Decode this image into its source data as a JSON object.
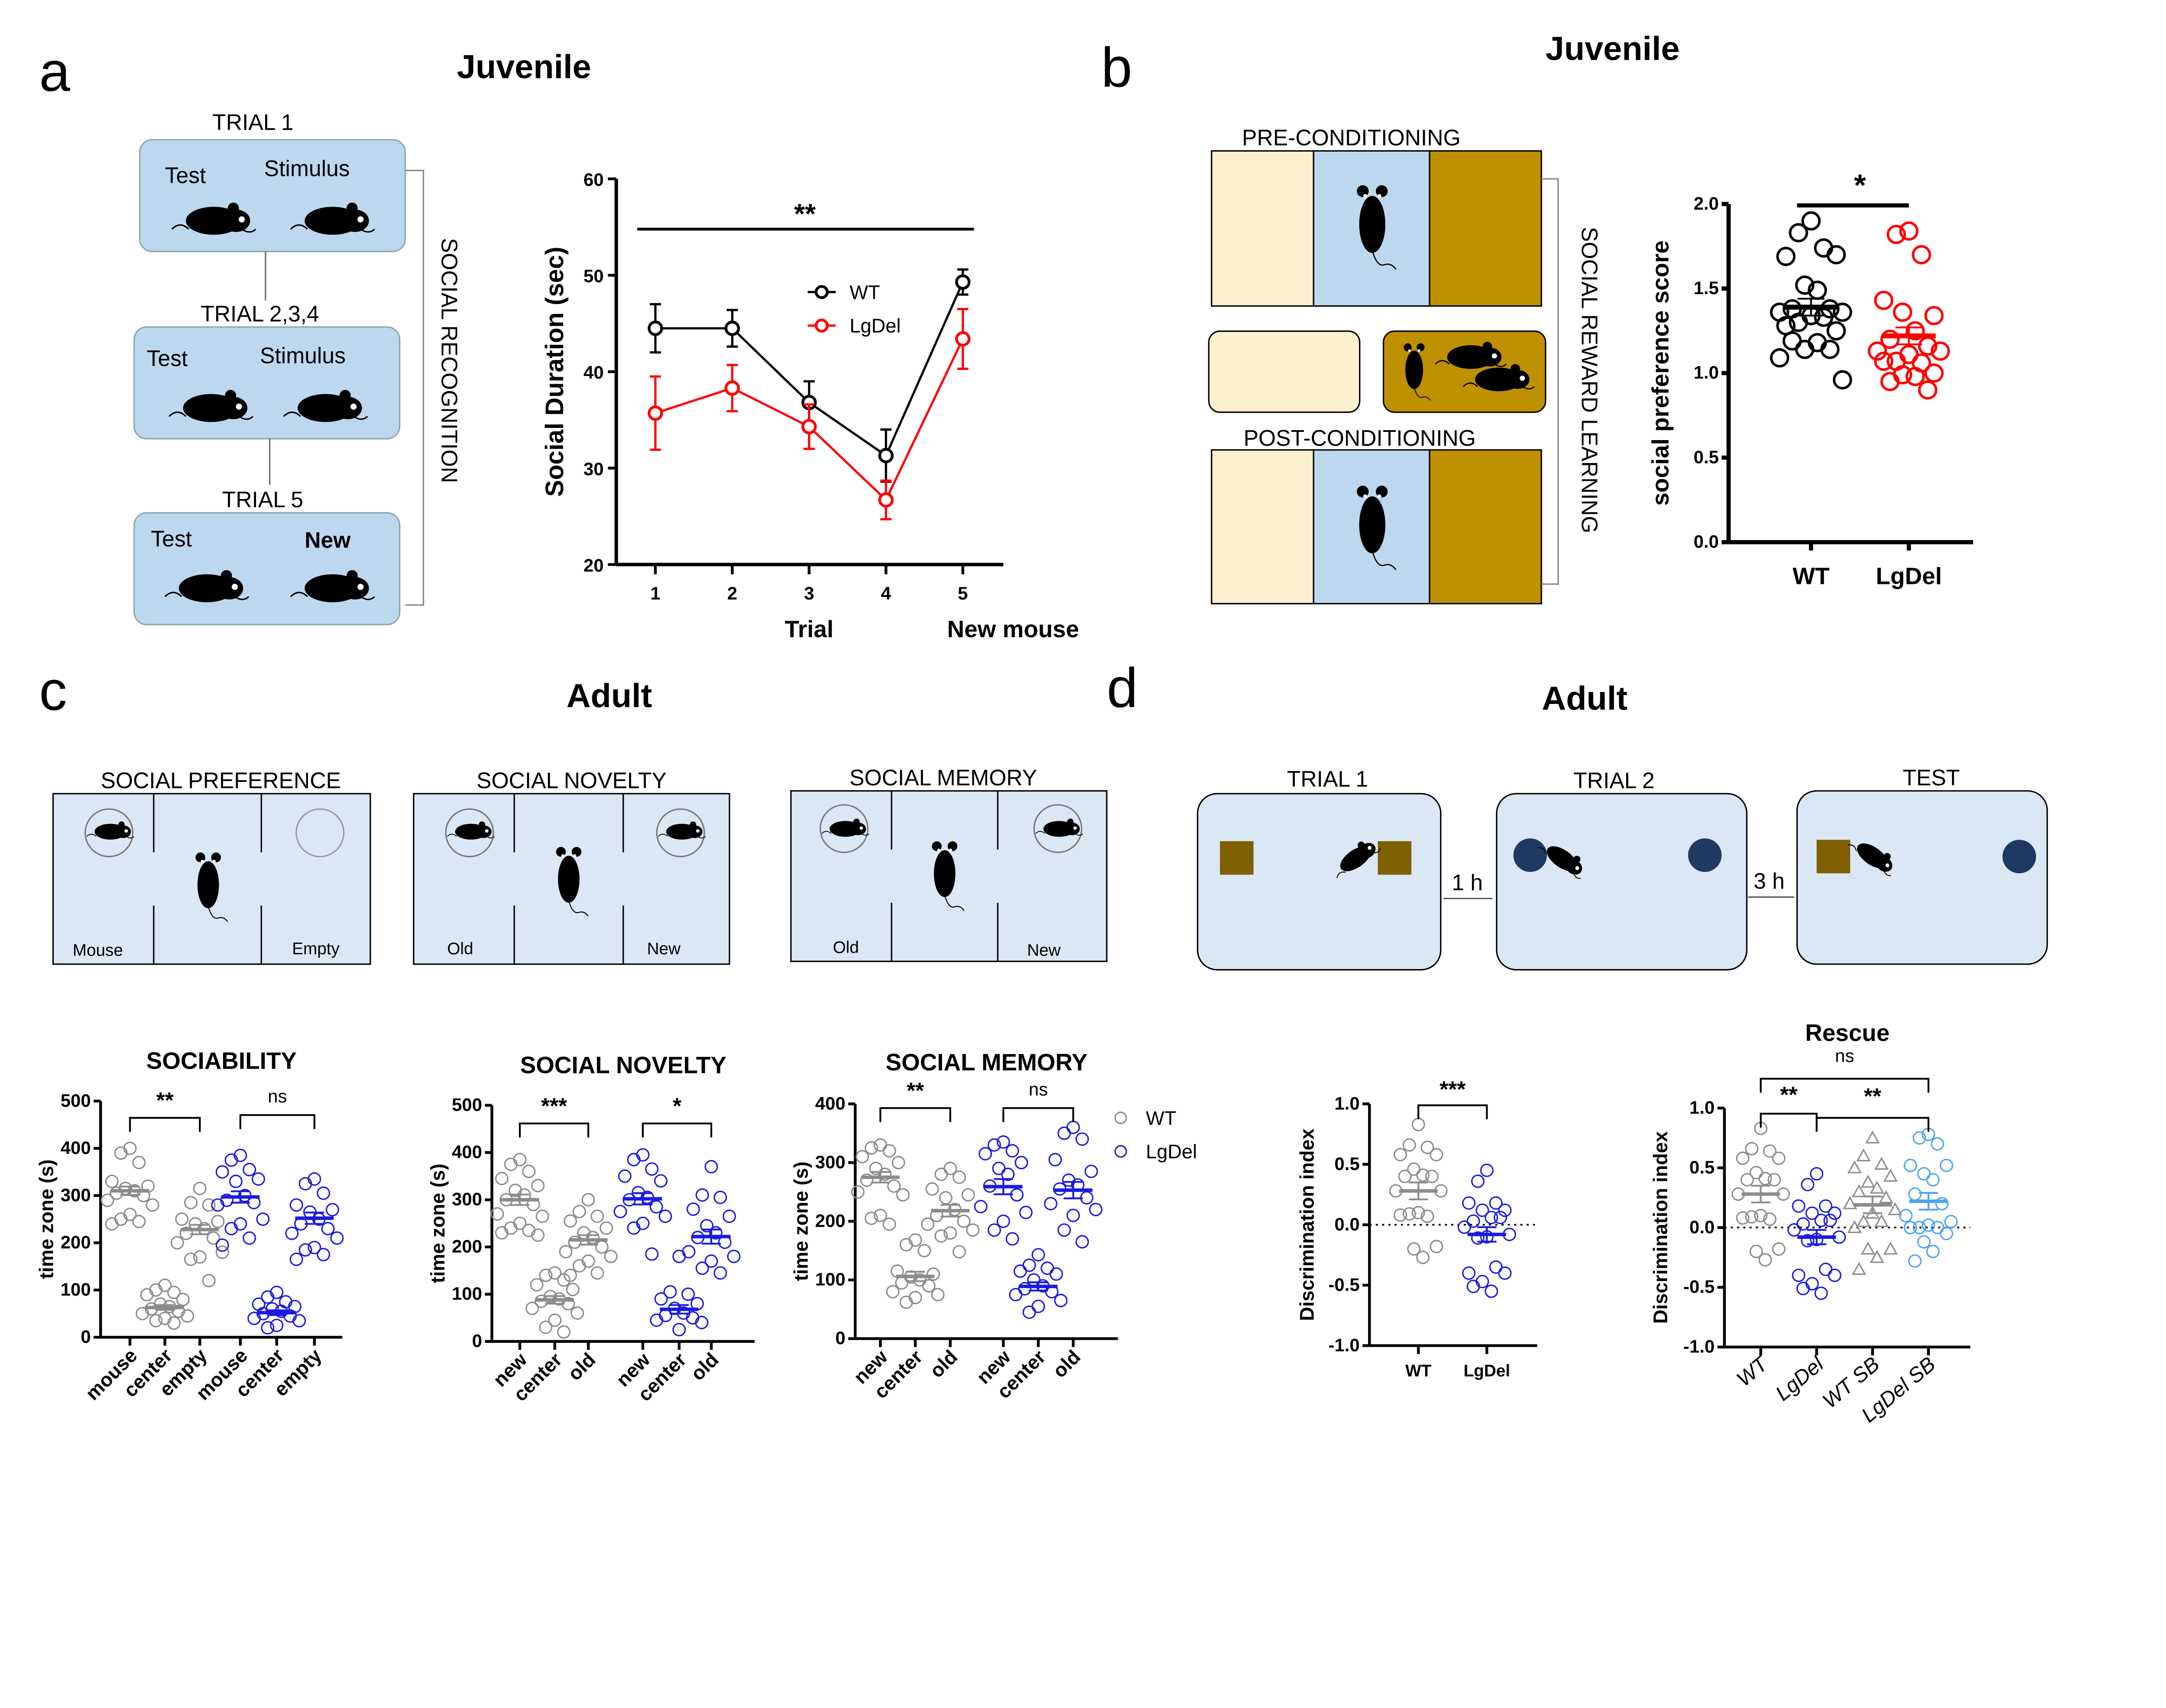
{
  "panels": {
    "a": {
      "letter": "a",
      "title": "Juvenile",
      "diagram": {
        "trial1": "TRIAL 1",
        "trial234": "TRIAL 2,3,4",
        "trial5": "TRIAL 5",
        "test": "Test",
        "stimulus": "Stimulus",
        "new": "New",
        "side_label": "SOCIAL RECOGNITION"
      }
    },
    "b": {
      "letter": "b",
      "title": "Juvenile",
      "diagram": {
        "pre": "PRE-CONDITIONING",
        "post": "POST-CONDITIONING",
        "side_label": "SOCIAL REWARD LEARNING",
        "colors": {
          "bedding_plain": "#fdf0cc",
          "center": "#bdd7ee",
          "bedding_social": "#bf9000"
        }
      }
    },
    "c": {
      "letter": "c",
      "title": "Adult",
      "diagram": {
        "pref": {
          "title": "SOCIAL PREFERENCE",
          "left": "Mouse",
          "right": "Empty"
        },
        "novelty": {
          "title": "SOCIAL NOVELTY",
          "left": "Old",
          "right": "New"
        },
        "memory": {
          "title": "SOCIAL MEMORY",
          "left": "Old",
          "right": "New"
        }
      }
    },
    "d": {
      "letter": "d",
      "title": "Adult",
      "diagram": {
        "trial1": "TRIAL 1",
        "trial2": "TRIAL 2",
        "test": "TEST",
        "gap1": "1 h",
        "gap2": "3 h",
        "colors": {
          "cube": "#7f6000",
          "ball": "#1f3864"
        }
      }
    }
  },
  "chart_data": [
    {
      "id": "a-line",
      "type": "line",
      "title": "",
      "xlabel": "Trial",
      "xlabel2": "New mouse",
      "ylabel": "Social Duration (sec)",
      "ylim": [
        20,
        60
      ],
      "yticks": [
        20,
        30,
        40,
        50,
        60
      ],
      "categories": [
        "1",
        "2",
        "3",
        "4",
        "5"
      ],
      "significance": "**",
      "legend": "top-right",
      "series": [
        {
          "name": "WT",
          "color": "#000000",
          "values": [
            44.5,
            44.5,
            36.8,
            31.3,
            49.3
          ],
          "sem": [
            2.5,
            1.9,
            2.2,
            2.7,
            1.3
          ]
        },
        {
          "name": "LgDel",
          "color": "#ff0000",
          "values": [
            35.7,
            38.3,
            34.3,
            26.7,
            43.4
          ],
          "sem": [
            3.8,
            2.4,
            2.3,
            2.0,
            3.1
          ]
        }
      ]
    },
    {
      "id": "b-scatter",
      "type": "scatter",
      "title": "",
      "ylabel": "social preference score",
      "ylim": [
        0,
        2
      ],
      "yticks": [
        0,
        0.5,
        1,
        1.5,
        2
      ],
      "ytick_labels": [
        "0.0",
        "0.5",
        "1.0",
        "1.5",
        "2.0"
      ],
      "comparisons": [
        {
          "a": 0,
          "b": 1,
          "label": "*"
        }
      ],
      "groups": [
        {
          "label": "WT",
          "color": "#000000",
          "marker": "circle",
          "mean": 1.39,
          "sem": 0.05,
          "points": [
            1.9,
            1.83,
            1.74,
            1.69,
            1.7,
            1.52,
            1.49,
            1.38,
            1.38,
            1.36,
            1.36,
            1.34,
            1.3,
            1.33,
            1.28,
            1.25,
            1.14,
            1.18,
            1.19,
            1.14,
            1.09,
            0.96
          ]
        },
        {
          "label": "LgDel",
          "color": "#ff0000",
          "marker": "circle",
          "mean": 1.22,
          "sem": 0.05,
          "points": [
            1.84,
            1.82,
            1.7,
            1.43,
            1.34,
            1.36,
            1.25,
            1.2,
            1.16,
            1.13,
            1.13,
            1.11,
            1.07,
            1.06,
            1.07,
            1.0,
            0.99,
            0.98,
            0.95,
            0.9
          ]
        }
      ]
    },
    {
      "id": "c-sociability",
      "type": "scatter",
      "title": "SOCIABILITY",
      "ylabel": "time zone (s)",
      "ylim": [
        0,
        500
      ],
      "yticks": [
        0,
        100,
        200,
        300,
        400,
        500
      ],
      "comparisons": [
        {
          "a": 0,
          "b": 2,
          "label": "**"
        },
        {
          "a": 3,
          "b": 5,
          "label": "ns"
        }
      ],
      "groups": [
        {
          "label": "mouse",
          "series": "WT",
          "color": "#8c8c8c",
          "marker": "circle",
          "mean": 310,
          "sem": 9,
          "points": [
            400,
            390,
            370,
            330,
            320,
            315,
            310,
            305,
            300,
            290,
            280,
            260,
            250,
            245,
            240
          ]
        },
        {
          "label": "center",
          "series": "WT",
          "color": "#8c8c8c",
          "marker": "circle",
          "mean": 63,
          "sem": 5,
          "points": [
            110,
            100,
            95,
            90,
            80,
            70,
            65,
            60,
            55,
            50,
            45,
            40,
            35,
            30
          ]
        },
        {
          "label": "empty",
          "series": "WT",
          "color": "#8c8c8c",
          "marker": "circle",
          "mean": 228,
          "sem": 10,
          "points": [
            315,
            285,
            280,
            250,
            245,
            240,
            230,
            220,
            210,
            200,
            180,
            170,
            165,
            120
          ]
        },
        {
          "label": "mouse",
          "series": "LgDel",
          "color": "#1a1ae0",
          "marker": "circle",
          "mean": 297,
          "sem": 12,
          "points": [
            385,
            375,
            355,
            350,
            335,
            330,
            300,
            290,
            285,
            280,
            250,
            240,
            230,
            210,
            195
          ]
        },
        {
          "label": "center",
          "series": "LgDel",
          "color": "#1a1ae0",
          "marker": "circle",
          "mean": 52,
          "sem": 5,
          "points": [
            95,
            85,
            75,
            70,
            65,
            60,
            55,
            50,
            45,
            40,
            35,
            25,
            20
          ]
        },
        {
          "label": "empty",
          "series": "LgDel",
          "color": "#1a1ae0",
          "marker": "circle",
          "mean": 252,
          "sem": 12,
          "points": [
            335,
            325,
            305,
            280,
            270,
            265,
            250,
            240,
            230,
            220,
            210,
            190,
            185,
            175,
            165
          ]
        }
      ]
    },
    {
      "id": "c-novelty",
      "type": "scatter",
      "title": "SOCIAL NOVELTY",
      "ylabel": "time zone (s)",
      "ylim": [
        0,
        500
      ],
      "yticks": [
        0,
        100,
        200,
        300,
        400,
        500
      ],
      "comparisons": [
        {
          "a": 0,
          "b": 2,
          "label": "***"
        },
        {
          "a": 3,
          "b": 5,
          "label": "*"
        }
      ],
      "groups": [
        {
          "label": "new",
          "series": "WT",
          "color": "#8c8c8c",
          "marker": "circle",
          "mean": 300,
          "sem": 11,
          "points": [
            385,
            375,
            360,
            345,
            330,
            320,
            310,
            300,
            290,
            270,
            265,
            250,
            240,
            235,
            230,
            225
          ]
        },
        {
          "label": "center",
          "series": "WT",
          "color": "#8c8c8c",
          "marker": "circle",
          "mean": 88,
          "sem": 8,
          "points": [
            145,
            140,
            130,
            120,
            110,
            95,
            90,
            85,
            80,
            70,
            60,
            45,
            30,
            20
          ]
        },
        {
          "label": "old",
          "series": "WT",
          "color": "#8c8c8c",
          "marker": "circle",
          "mean": 215,
          "sem": 10,
          "points": [
            300,
            275,
            265,
            255,
            240,
            230,
            220,
            210,
            200,
            190,
            180,
            170,
            160,
            145,
            140
          ]
        },
        {
          "label": "new",
          "series": "LgDel",
          "color": "#1a1ae0",
          "marker": "circle",
          "mean": 302,
          "sem": 12,
          "points": [
            395,
            385,
            365,
            350,
            340,
            315,
            305,
            300,
            285,
            275,
            265,
            250,
            240,
            185
          ]
        },
        {
          "label": "center",
          "series": "LgDel",
          "color": "#1a1ae0",
          "marker": "circle",
          "mean": 68,
          "sem": 9,
          "points": [
            180,
            105,
            100,
            90,
            80,
            70,
            60,
            55,
            50,
            45,
            40,
            25
          ]
        },
        {
          "label": "old",
          "series": "LgDel",
          "color": "#1a1ae0",
          "marker": "circle",
          "mean": 222,
          "sem": 15,
          "points": [
            370,
            310,
            305,
            280,
            265,
            245,
            230,
            220,
            210,
            190,
            180,
            170,
            155,
            145
          ]
        }
      ]
    },
    {
      "id": "c-memory",
      "type": "scatter",
      "title": "SOCIAL MEMORY",
      "ylabel": "time zone (s)",
      "ylim": [
        0,
        400
      ],
      "yticks": [
        0,
        100,
        200,
        300,
        400
      ],
      "legend": "right",
      "legend_entries": [
        {
          "name": "WT",
          "color": "#8c8c8c"
        },
        {
          "name": "LgDel",
          "color": "#1a1ae0"
        }
      ],
      "comparisons": [
        {
          "a": 0,
          "b": 2,
          "label": "**"
        },
        {
          "a": 3,
          "b": 5,
          "label": "ns"
        }
      ],
      "groups": [
        {
          "label": "new",
          "series": "WT",
          "color": "#8c8c8c",
          "marker": "circle",
          "mean": 275,
          "sem": 9,
          "points": [
            330,
            325,
            320,
            310,
            300,
            290,
            280,
            270,
            260,
            250,
            245,
            210,
            205,
            195
          ]
        },
        {
          "label": "center",
          "series": "WT",
          "color": "#8c8c8c",
          "marker": "circle",
          "mean": 106,
          "sem": 8,
          "points": [
            168,
            160,
            150,
            115,
            110,
            105,
            100,
            95,
            90,
            80,
            75,
            70,
            62
          ]
        },
        {
          "label": "old",
          "series": "WT",
          "color": "#8c8c8c",
          "marker": "circle",
          "mean": 218,
          "sem": 10,
          "points": [
            290,
            280,
            275,
            255,
            245,
            240,
            220,
            210,
            200,
            195,
            185,
            180,
            175,
            148
          ]
        },
        {
          "label": "new",
          "series": "LgDel",
          "color": "#1a1ae0",
          "marker": "circle",
          "mean": 259,
          "sem": 13,
          "points": [
            335,
            330,
            320,
            315,
            300,
            290,
            280,
            260,
            245,
            225,
            215,
            200,
            185,
            170
          ]
        },
        {
          "label": "center",
          "series": "LgDel",
          "color": "#1a1ae0",
          "marker": "circle",
          "mean": 89,
          "sem": 7,
          "points": [
            143,
            125,
            120,
            115,
            110,
            100,
            90,
            85,
            80,
            75,
            65,
            55,
            45
          ]
        },
        {
          "label": "old",
          "series": "LgDel",
          "color": "#1a1ae0",
          "marker": "circle",
          "mean": 253,
          "sem": 14,
          "points": [
            360,
            350,
            340,
            305,
            285,
            270,
            262,
            255,
            240,
            230,
            220,
            210,
            185,
            165
          ]
        }
      ]
    },
    {
      "id": "d-discrimination",
      "type": "scatter",
      "title": "",
      "ylabel": "Discrimination index",
      "ylim": [
        -1,
        1
      ],
      "yticks": [
        -1,
        -0.5,
        0,
        0.5,
        1
      ],
      "ytick_labels": [
        "-1.0",
        "-0.5",
        "0.0",
        "0.5",
        "1.0"
      ],
      "reference_line": 0,
      "comparisons": [
        {
          "a": 0,
          "b": 1,
          "label": "***"
        }
      ],
      "groups": [
        {
          "label": "WT",
          "color": "#8c8c8c",
          "marker": "circle",
          "mean": 0.28,
          "sem": 0.07,
          "points": [
            0.83,
            0.66,
            0.64,
            0.58,
            0.58,
            0.46,
            0.41,
            0.4,
            0.4,
            0.28,
            0.28,
            0.1,
            0.09,
            0.07,
            0.08,
            -0.18,
            -0.2,
            -0.27
          ]
        },
        {
          "label": "LgDel",
          "color": "#1a1ae0",
          "marker": "circle",
          "mean": -0.08,
          "sem": 0.06,
          "points": [
            0.45,
            0.36,
            0.18,
            0.18,
            0.12,
            0.12,
            0.06,
            0.03,
            0.06,
            -0.02,
            -0.08,
            -0.1,
            -0.11,
            -0.35,
            -0.4,
            -0.4,
            -0.47,
            -0.55,
            -0.51
          ]
        }
      ]
    },
    {
      "id": "d-rescue",
      "type": "scatter",
      "title": "Rescue",
      "ylabel": "Discrimination index",
      "ylim": [
        -1,
        1
      ],
      "yticks": [
        -1,
        -0.5,
        0,
        0.5,
        1
      ],
      "ytick_labels": [
        "-1.0",
        "-0.5",
        "0.0",
        "0.5",
        "1.0"
      ],
      "reference_line": 0,
      "comparisons": [
        {
          "a": 0,
          "b": 3,
          "label": "ns"
        },
        {
          "a": 0,
          "b": 1,
          "label": "**"
        },
        {
          "a": 1,
          "b": 3,
          "label": "**"
        }
      ],
      "groups": [
        {
          "label": "WT",
          "color": "#8c8c8c",
          "marker": "circle",
          "mean": 0.28,
          "sem": 0.07,
          "points": [
            0.83,
            0.66,
            0.64,
            0.58,
            0.58,
            0.46,
            0.41,
            0.4,
            0.4,
            0.28,
            0.28,
            0.1,
            0.09,
            0.07,
            0.08,
            -0.18,
            -0.2,
            -0.27
          ]
        },
        {
          "label": "LgDel",
          "color": "#1a1ae0",
          "marker": "circle",
          "mean": -0.08,
          "sem": 0.06,
          "points": [
            0.45,
            0.36,
            0.18,
            0.18,
            0.12,
            0.12,
            0.06,
            0.03,
            0.06,
            -0.02,
            -0.08,
            -0.1,
            -0.11,
            -0.35,
            -0.4,
            -0.4,
            -0.47,
            -0.55,
            -0.51
          ]
        },
        {
          "label": "WT SB",
          "color": "#8c8c8c",
          "marker": "triangle",
          "mean": 0.19,
          "sem": 0.07,
          "points": [
            0.75,
            0.6,
            0.53,
            0.5,
            0.43,
            0.38,
            0.33,
            0.3,
            0.25,
            0.2,
            0.15,
            0.12,
            0.05,
            0.05,
            0.0,
            -0.18,
            -0.18,
            -0.25,
            -0.35
          ]
        },
        {
          "label": "LgDel SB",
          "color": "#4da3f0",
          "marker": "circle",
          "mean": 0.22,
          "sem": 0.07,
          "points": [
            0.78,
            0.75,
            0.7,
            0.52,
            0.52,
            0.45,
            0.4,
            0.28,
            0.2,
            0.1,
            0.05,
            0.02,
            0.0,
            0.0,
            0.0,
            -0.05,
            -0.12,
            -0.2,
            -0.28
          ]
        }
      ]
    }
  ]
}
